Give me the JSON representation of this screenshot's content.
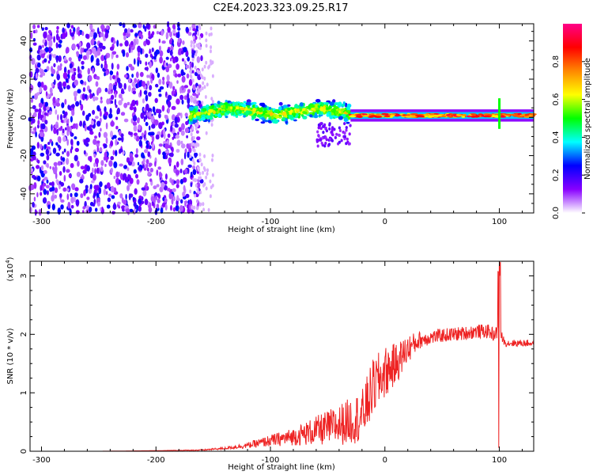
{
  "title": "C2E4.2023.323.09.25.R17",
  "chart_data": [
    {
      "type": "heatmap",
      "xlabel": "Height of straight line (km)",
      "ylabel": "Frequency (Hz)",
      "xlim": [
        -310,
        130
      ],
      "ylim": [
        -50,
        49
      ],
      "xticks": [
        -300,
        -200,
        -100,
        0,
        100
      ],
      "yticks": [
        -40,
        -20,
        0,
        20,
        40
      ],
      "grid": false,
      "colorbar": {
        "label": "Normalized spectral amplitude",
        "range": [
          0,
          1
        ],
        "ticks": [
          0.0,
          0.2,
          0.4,
          0.6,
          0.8
        ],
        "tick_labels": [
          "0.0",
          "0.2",
          "0.4",
          "0.6",
          "0.8"
        ],
        "colormap": [
          "#ffffff",
          "#8800ff",
          "#0000ff",
          "#00ffff",
          "#00ff00",
          "#ffff00",
          "#ff8800",
          "#ff0000",
          "#ff0088"
        ]
      },
      "features": [
        {
          "region": "noise",
          "x": [
            -310,
            -160
          ],
          "y": [
            -50,
            49
          ],
          "level": 0.15
        },
        {
          "region": "signal-band",
          "x": [
            -170,
            -30
          ],
          "center_y": 3,
          "half_width_y": 6,
          "level": 0.45
        },
        {
          "region": "signal-line",
          "x": [
            -30,
            130
          ],
          "center_y": 1,
          "half_width_y": 2,
          "level": 0.85
        },
        {
          "region": "spike",
          "x": 100,
          "y": [
            -6,
            10
          ],
          "level": 0.5
        }
      ]
    },
    {
      "type": "line",
      "xlabel": "Height of straight line (km)",
      "ylabel": "SNR (10 * v/v)",
      "y_scale_label": "(x10",
      "y_scale_exponent": "4",
      "y_scale_suffix": ")",
      "xlim": [
        -310,
        130
      ],
      "ylim": [
        0,
        3.25
      ],
      "xticks": [
        -300,
        -200,
        -100,
        0,
        100
      ],
      "yticks": [
        0,
        1,
        2,
        3
      ],
      "grid": false,
      "series": [
        {
          "color": "#ee2222",
          "x": [
            -310,
            -250,
            -200,
            -160,
            -140,
            -120,
            -100,
            -80,
            -60,
            -40,
            -20,
            -10,
            0,
            10,
            20,
            30,
            40,
            50,
            60,
            70,
            80,
            90,
            95,
            100,
            105,
            110,
            120,
            130
          ],
          "y": [
            0.0,
            0.0,
            0.01,
            0.02,
            0.05,
            0.1,
            0.18,
            0.25,
            0.35,
            0.45,
            0.6,
            1.1,
            1.35,
            1.5,
            1.75,
            1.9,
            1.95,
            1.98,
            2.0,
            2.02,
            2.05,
            2.05,
            2.0,
            2.05,
            1.85,
            1.85,
            1.85,
            1.85
          ],
          "noise_amplitude": [
            0.0,
            0.0,
            0.0,
            0.01,
            0.02,
            0.05,
            0.1,
            0.15,
            0.25,
            0.35,
            0.45,
            0.5,
            0.45,
            0.35,
            0.25,
            0.15,
            0.12,
            0.12,
            0.12,
            0.12,
            0.12,
            0.12,
            0.12,
            0.1,
            0.06,
            0.06,
            0.06,
            0.06
          ],
          "spike": {
            "x": 100,
            "max": 3.25,
            "min": 0.0
          }
        }
      ]
    }
  ]
}
